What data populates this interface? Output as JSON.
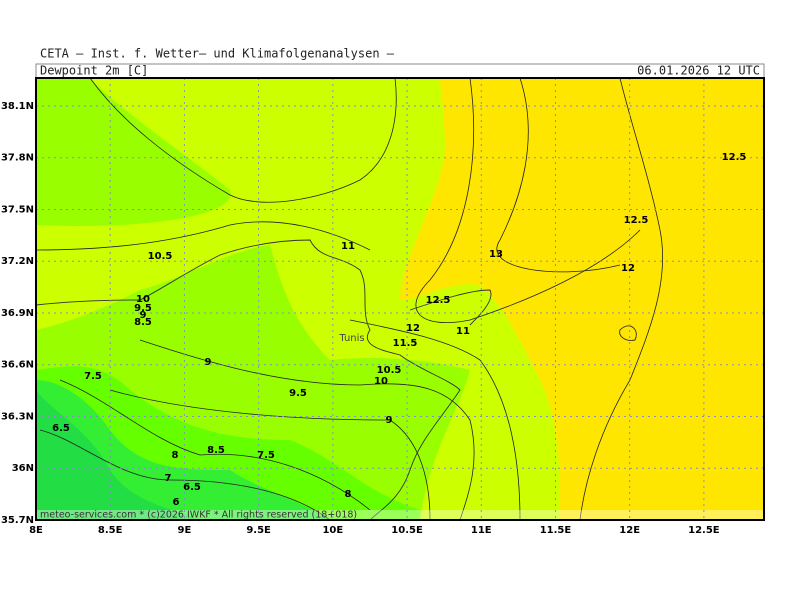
{
  "header": {
    "institute": "CETA – Inst. f. Wetter– und Klimafolgenanalysen –",
    "parameter": "Dewpoint_2m_[C]",
    "valid": "06.01.2026 12 UTC"
  },
  "map": {
    "xlim": [
      8,
      12.905
    ],
    "ylim": [
      35.7,
      38.262
    ],
    "xticks": [
      {
        "value": 8,
        "label": "8E"
      },
      {
        "value": 8.5,
        "label": "8.5E"
      },
      {
        "value": 9,
        "label": "9E"
      },
      {
        "value": 9.5,
        "label": "9.5E"
      },
      {
        "value": 10,
        "label": "10E"
      },
      {
        "value": 10.5,
        "label": "10.5E"
      },
      {
        "value": 11,
        "label": "11E"
      },
      {
        "value": 11.5,
        "label": "11.5E"
      },
      {
        "value": 12,
        "label": "12E"
      },
      {
        "value": 12.5,
        "label": "12.5E"
      }
    ],
    "yticks": [
      {
        "value": 38.1,
        "label": "38.1N"
      },
      {
        "value": 37.8,
        "label": "37.8N"
      },
      {
        "value": 37.5,
        "label": "37.5N"
      },
      {
        "value": 37.2,
        "label": "37.2N"
      },
      {
        "value": 36.9,
        "label": "36.9N"
      },
      {
        "value": 36.6,
        "label": "36.6N"
      },
      {
        "value": 36.3,
        "label": "36.3N"
      },
      {
        "value": 36,
        "label": "36N"
      },
      {
        "value": 35.7,
        "label": "35.7N"
      }
    ],
    "city": "Tunis",
    "contour_labels": [
      12.5,
      12.5,
      13,
      12,
      10.5,
      11,
      12.5,
      12,
      11,
      11.5,
      10,
      9.5,
      9,
      8.5,
      9,
      7.5,
      10.5,
      10,
      9.5,
      9,
      6.5,
      8.5,
      8,
      7.5,
      7,
      6.5,
      6,
      8
    ],
    "footer": "meteo-services.com * (c)2026 IWKF * All rights reserved (18+018)"
  }
}
